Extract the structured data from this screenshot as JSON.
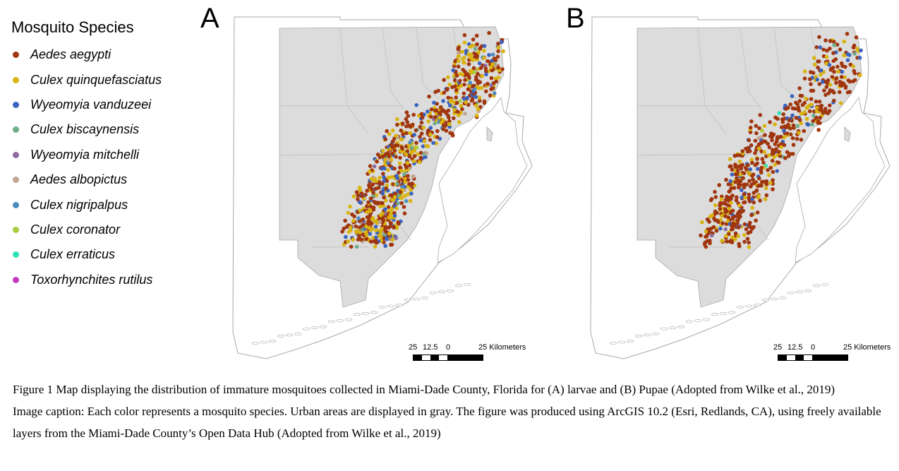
{
  "legend": {
    "title": "Mosquito Species",
    "items": [
      {
        "label": "Aedes aegypti",
        "color": "#a0360f"
      },
      {
        "label": "Culex quinquefasciatus",
        "color": "#d8b30f"
      },
      {
        "label": "Wyeomyia vanduzeei",
        "color": "#3a63c0"
      },
      {
        "label": "Culex biscaynensis",
        "color": "#6eae8c"
      },
      {
        "label": "Wyeomyia mitchelli",
        "color": "#8d6ca0"
      },
      {
        "label": "Aedes albopictus",
        "color": "#c2a592"
      },
      {
        "label": "Culex nigripalpus",
        "color": "#4a8cc0"
      },
      {
        "label": "Culex coronator",
        "color": "#a9cc3c"
      },
      {
        "label": "Culex erraticus",
        "color": "#2fe2b4"
      },
      {
        "label": "Toxorhynchites rutilus",
        "color": "#c43ac4"
      }
    ]
  },
  "panels": [
    {
      "letter": "A",
      "map_name": "map-larvae"
    },
    {
      "letter": "B",
      "map_name": "map-pupae"
    }
  ],
  "scale_bar": {
    "labels": [
      "25",
      "12.5",
      "0",
      "25 Kilometers"
    ]
  },
  "caption": {
    "figure_text": "Figure 1 Map displaying the distribution of immature mosquitoes collected in Miami-Dade County, Florida for (A) larvae and (B) Pupae (Adopted from Wilke et al., 2019)",
    "image_caption": "Image caption: Each color represents a mosquito species. Urban areas are displayed in gray. The figure was produced using ArcGIS 10.2 (Esri, Redlands, CA), using freely available layers from the Miami-Dade County’s Open Data Hub (Adopted from Wilke et al., 2019)"
  },
  "colors": {
    "urban_fill": "#dcdcdc",
    "boundary": "#a8a8a8"
  }
}
